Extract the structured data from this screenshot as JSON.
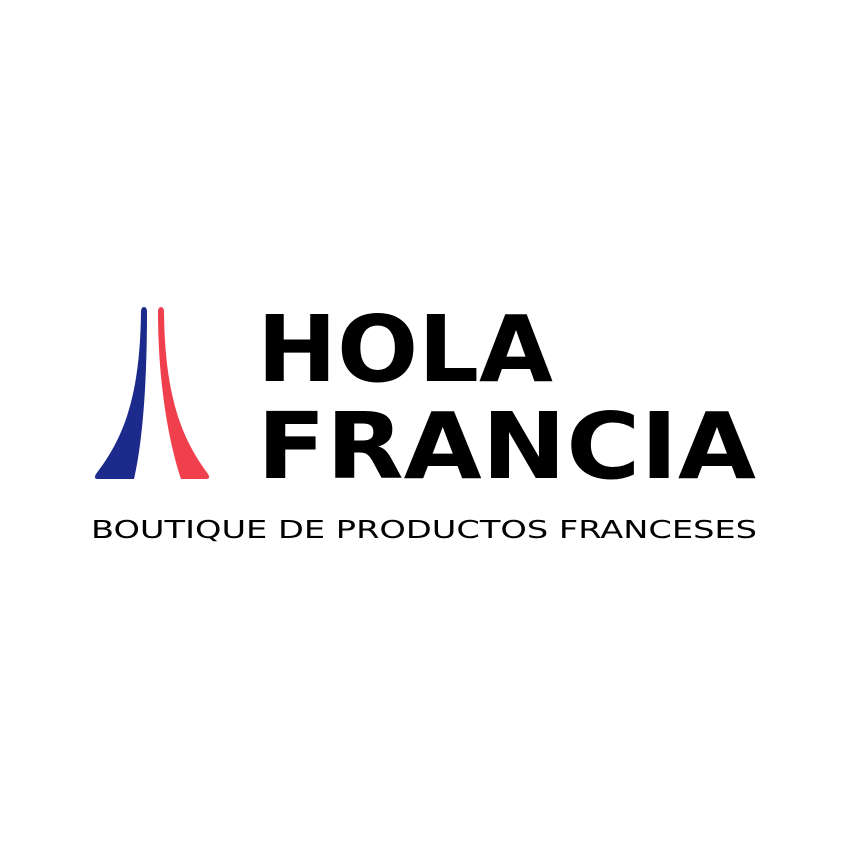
{
  "logo": {
    "lines": [
      "HOLA",
      "FRANCIA"
    ],
    "tagline": "BOUTIQUE DE PRODUCTOS FRANCESES"
  }
}
